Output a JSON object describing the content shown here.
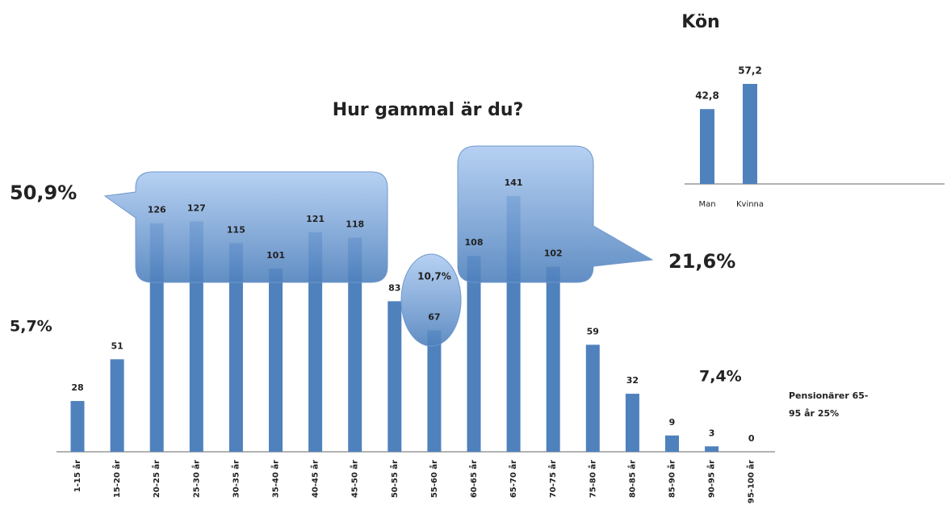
{
  "chart_data": [
    {
      "type": "bar",
      "title": "Hur gammal är du?",
      "categories": [
        "1-15 år",
        "15-20 år",
        "20-25 år",
        "25-30 år",
        "30-35 år",
        "35-40 år",
        "40-45 år",
        "45-50 år",
        "50-55 år",
        "55-60 år",
        "60-65 år",
        "65-70 år",
        "70-75 år",
        "75-80 år",
        "80-85 år",
        "85-90 år",
        "90-95 år",
        "95-100 år"
      ],
      "values": [
        28,
        51,
        126,
        127,
        115,
        101,
        121,
        118,
        83,
        67,
        108,
        141,
        102,
        59,
        32,
        9,
        3,
        0
      ],
      "color": "#4f81bd",
      "annotations": [
        "50,9%",
        "5,7%",
        "10,7%",
        "21,6%",
        "7,4%",
        "Pensionärer 65-95 år 25%"
      ]
    },
    {
      "type": "bar",
      "title": "Kön",
      "categories": [
        "Man",
        "Kvinna"
      ],
      "values": [
        42.8,
        57.2
      ],
      "value_labels": [
        "42,8",
        "57,2"
      ],
      "color": "#4f81bd"
    }
  ]
}
